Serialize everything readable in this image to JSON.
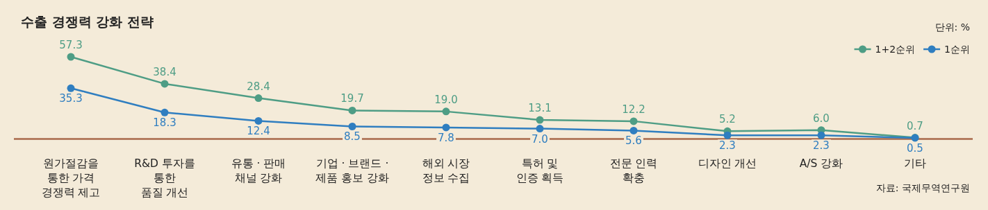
{
  "chart_data": {
    "type": "line",
    "title": "수출 경쟁력 강화 전략",
    "categories": [
      "원가절감을\n통한 가격\n경쟁력 제고",
      "R&D 투자를\n통한\n품질 개선",
      "유통 · 판매\n채널 강화",
      "기업 · 브랜드 ·\n제품 홍보 강화",
      "해외 시장\n정보 수집",
      "특허 및\n인증 획득",
      "전문 인력\n확충",
      "디자인 개선",
      "A/S 강화",
      "기타"
    ],
    "series": [
      {
        "name": "1+2순위",
        "color": "#4e9d85",
        "values": [
          57.3,
          38.4,
          28.4,
          19.7,
          19.0,
          13.1,
          12.2,
          5.2,
          6.0,
          0.7
        ],
        "value_labels": [
          "57.3",
          "38.4",
          "28.4",
          "19.7",
          "19.0",
          "13.1",
          "12.2",
          "5.2",
          "6.0",
          "0.7"
        ]
      },
      {
        "name": "1순위",
        "color": "#2f7ec0",
        "values": [
          35.3,
          18.3,
          12.4,
          8.5,
          7.8,
          7.0,
          5.6,
          2.3,
          2.3,
          0.5
        ],
        "value_labels": [
          "35.3",
          "18.3",
          "12.4",
          "8.5",
          "7.8",
          "7.0",
          "5.6",
          "2.3",
          "2.3",
          "0.5"
        ]
      }
    ],
    "marker": "circle",
    "legend": "top right",
    "annotations": [
      "단위: %",
      "자료: 국제무역연구원"
    ]
  }
}
